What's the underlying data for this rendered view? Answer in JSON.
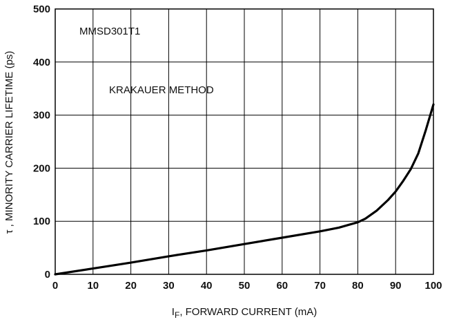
{
  "chart_data": {
    "type": "line",
    "xlabel": "I",
    "xlabel_sub": "F",
    "xlabel_rest": ", FORWARD CURRENT (mA)",
    "ylabel": "τ , MINORITY CARRIER LIFETIME (ps)",
    "xlim": [
      0,
      100
    ],
    "ylim": [
      0,
      500
    ],
    "x_ticks": [
      0,
      10,
      20,
      30,
      40,
      50,
      60,
      70,
      80,
      90,
      100
    ],
    "y_ticks": [
      0,
      100,
      200,
      300,
      400,
      500
    ],
    "grid": true,
    "annotations": [
      {
        "id": "part-number",
        "text": "MMSD301T1"
      },
      {
        "id": "method",
        "text": "KRAKAUER METHOD"
      }
    ],
    "series": [
      {
        "x": [
          0,
          10,
          20,
          30,
          40,
          50,
          60,
          70,
          75,
          80,
          82,
          85,
          88,
          90,
          92,
          94,
          96,
          98,
          100
        ],
        "y": [
          0,
          11,
          22,
          34,
          45,
          57,
          69,
          81,
          88,
          98,
          105,
          120,
          140,
          156,
          176,
          198,
          228,
          272,
          320
        ]
      }
    ]
  }
}
